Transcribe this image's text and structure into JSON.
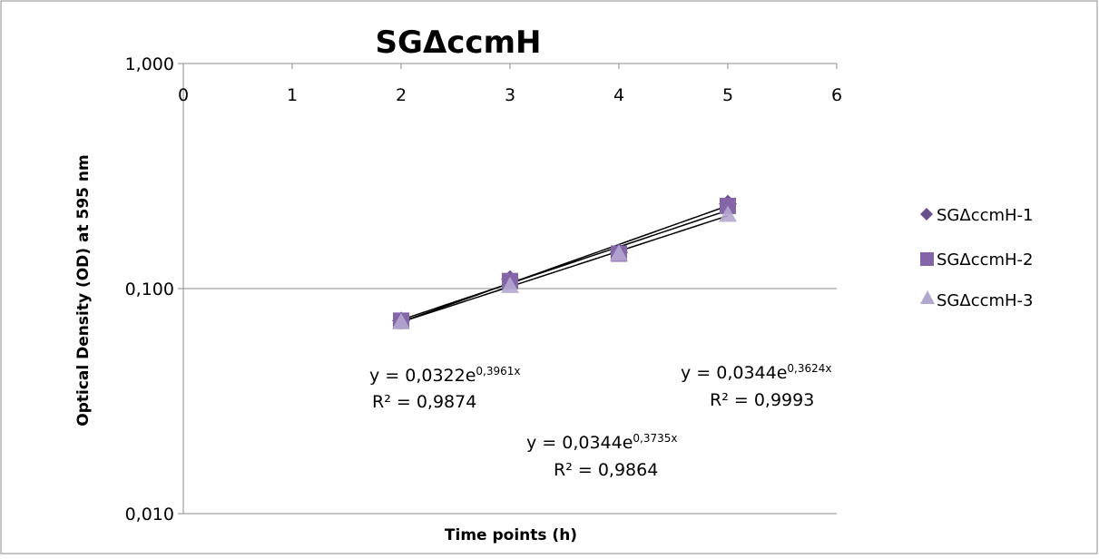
{
  "chart_data": {
    "type": "scatter",
    "title": "SGΔccmH",
    "xlabel": "Time points (h)",
    "ylabel": "Optical Density (OD) at 595 nm",
    "x_scale": "linear",
    "y_scale": "log",
    "xlim": [
      0,
      6
    ],
    "ylim": [
      0.01,
      1
    ],
    "x_ticks": [
      "0",
      "1",
      "2",
      "3",
      "4",
      "5",
      "6"
    ],
    "y_ticks": [
      "0,010",
      "0,100",
      "1,000"
    ],
    "grid": "horizontal major gridlines",
    "legend_position": "right",
    "series": [
      {
        "name": "SGΔccmH-1",
        "marker": "diamond",
        "color": "#6a4f8e",
        "x": [
          2,
          3,
          4,
          5
        ],
        "y": [
          0.072,
          0.11,
          0.145,
          0.238
        ],
        "trendline": {
          "type": "exponential",
          "a": 0.0322,
          "b": 0.3961
        }
      },
      {
        "name": "SGΔccmH-2",
        "marker": "square",
        "color": "#8465a8",
        "x": [
          2,
          3,
          4,
          5
        ],
        "y": [
          0.072,
          0.108,
          0.143,
          0.233
        ],
        "trendline": {
          "type": "exponential",
          "a": 0.0344,
          "b": 0.3735
        }
      },
      {
        "name": "SGΔccmH-3",
        "marker": "triangle",
        "color": "#b4a7cf",
        "x": [
          2,
          3,
          4,
          5
        ],
        "y": [
          0.071,
          0.103,
          0.143,
          0.213
        ],
        "trendline": {
          "type": "exponential",
          "a": 0.0344,
          "b": 0.3624
        }
      }
    ],
    "annotations": [
      {
        "equation_main": "y = 0,0322e",
        "equation_exp": "0,3961x",
        "r2": "R² = 0,9874"
      },
      {
        "equation_main": "y = 0,0344e",
        "equation_exp": "0,3735x",
        "r2": "R² = 0,9864"
      },
      {
        "equation_main": "y = 0,0344e",
        "equation_exp": "0,3624x",
        "r2": "R² = 0,9993"
      }
    ]
  }
}
